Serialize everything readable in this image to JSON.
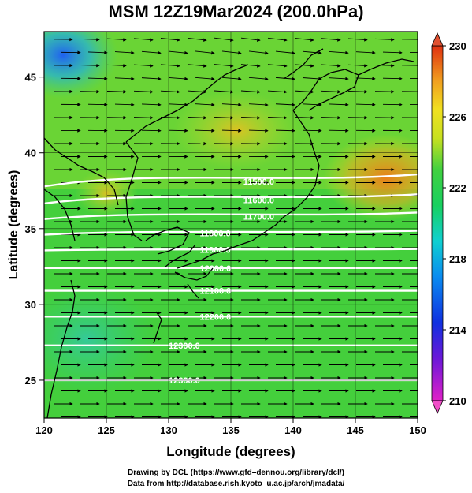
{
  "title": "MSM 12Z19Mar2024 (200.0hPa)",
  "axes": {
    "xlabel": "Longitude (degrees)",
    "ylabel": "Latitude  (degrees)",
    "xticks": [
      "120",
      "125",
      "130",
      "135",
      "140",
      "145",
      "150"
    ],
    "yticks": [
      "45",
      "40",
      "35",
      "30",
      "25"
    ]
  },
  "colorbar": {
    "min": 210,
    "max": 230,
    "ticks": [
      "230",
      "226",
      "222",
      "218",
      "214",
      "210"
    ]
  },
  "contours": [
    {
      "label": "12300.0",
      "lat": 25.0
    },
    {
      "label": "12300.0",
      "lat": 27.3
    },
    {
      "label": "12200.0",
      "lat": 29.2
    },
    {
      "label": "12100.0",
      "lat": 30.9
    },
    {
      "label": "12000.0",
      "lat": 32.4
    },
    {
      "label": "11900.0",
      "lat": 33.6
    },
    {
      "label": "11800.0",
      "lat": 34.7
    },
    {
      "label": "11700.0",
      "lat": 35.8
    },
    {
      "label": "11600.0",
      "lat": 36.9
    },
    {
      "label": "11500.0",
      "lat": 38.1
    }
  ],
  "credits": {
    "line1": "Drawing by DCL (https://www.gfd–dennou.org/library/dcl/)",
    "line2": "Data from http://database.rish.kyoto–u.ac.jp/arch/jmadata/"
  },
  "colors": {
    "field_low": "#2a8cff",
    "field_mid": "#2fd35a",
    "field_high": "#f08a20"
  }
}
